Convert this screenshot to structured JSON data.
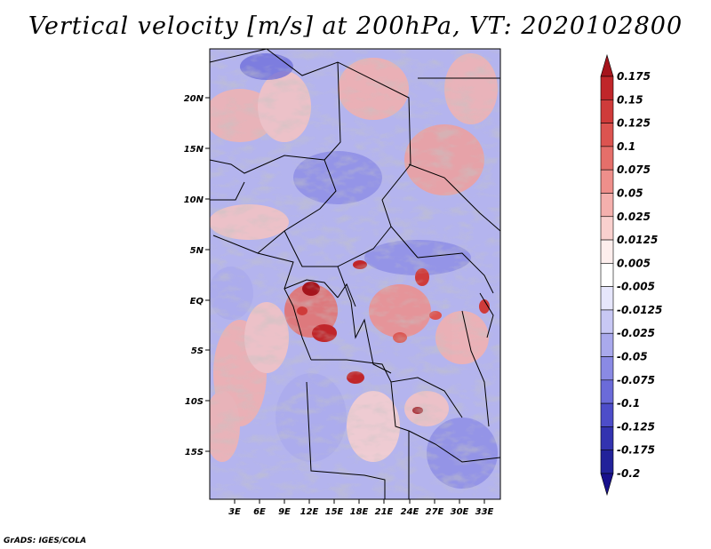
{
  "title": "Vertical velocity [m/s] at 200hPa, VT: 2020102800",
  "credit": "GrADS: IGES/COLA",
  "map": {
    "lat_labels": [
      "20N",
      "15N",
      "10N",
      "5N",
      "EQ",
      "5S",
      "10S",
      "15S"
    ],
    "lon_labels": [
      "3E",
      "6E",
      "9E",
      "12E",
      "15E",
      "18E",
      "21E",
      "24E",
      "27E",
      "30E",
      "33E"
    ],
    "field": "vertical velocity"
  },
  "colorbar": {
    "labels": [
      "0.175",
      "0.15",
      "0.125",
      "0.1",
      "0.075",
      "0.05",
      "0.025",
      "0.0125",
      "0.005",
      "-0.005",
      "-0.0125",
      "-0.025",
      "-0.05",
      "-0.075",
      "-0.1",
      "-0.125",
      "-0.175",
      "-0.2"
    ],
    "colors": [
      "#a5141c",
      "#c0262a",
      "#cf3b3a",
      "#dc5450",
      "#e56f6a",
      "#ee8f8b",
      "#f4b0ad",
      "#f9d0ce",
      "#fdeeed",
      "#ffffff",
      "#e6e6fb",
      "#c8c8f4",
      "#a9a9ec",
      "#8a8ae4",
      "#6b6bd9",
      "#4d4dc9",
      "#3333b0",
      "#22229a",
      "#18108c"
    ]
  }
}
